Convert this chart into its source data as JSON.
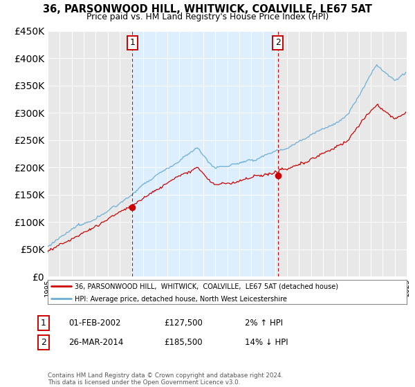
{
  "title": "36, PARSONWOOD HILL, WHITWICK, COALVILLE, LE67 5AT",
  "subtitle": "Price paid vs. HM Land Registry's House Price Index (HPI)",
  "legend_line1": "36, PARSONWOOD HILL,  WHITWICK,  COALVILLE,  LE67 5AT (detached house)",
  "legend_line2": "HPI: Average price, detached house, North West Leicestershire",
  "annotation1_label": "1",
  "annotation1_date": "01-FEB-2002",
  "annotation1_price": "£127,500",
  "annotation1_hpi": "2% ↑ HPI",
  "annotation2_label": "2",
  "annotation2_date": "26-MAR-2014",
  "annotation2_price": "£185,500",
  "annotation2_hpi": "14% ↓ HPI",
  "footnote": "Contains HM Land Registry data © Crown copyright and database right 2024.\nThis data is licensed under the Open Government Licence v3.0.",
  "background_color": "#ffffff",
  "plot_bg_color": "#e8e8e8",
  "shade_color": "#ddeeff",
  "hpi_line_color": "#6baed6",
  "price_line_color": "#cc0000",
  "annotation_line_color": "#cc0000",
  "ylim": [
    0,
    450000
  ],
  "yticks": [
    0,
    50000,
    100000,
    150000,
    200000,
    250000,
    300000,
    350000,
    400000,
    450000
  ],
  "sale1_year": 2002.08,
  "sale1_price": 127500,
  "sale2_year": 2014.23,
  "sale2_price": 185500,
  "xmin": 1995,
  "xmax": 2025
}
